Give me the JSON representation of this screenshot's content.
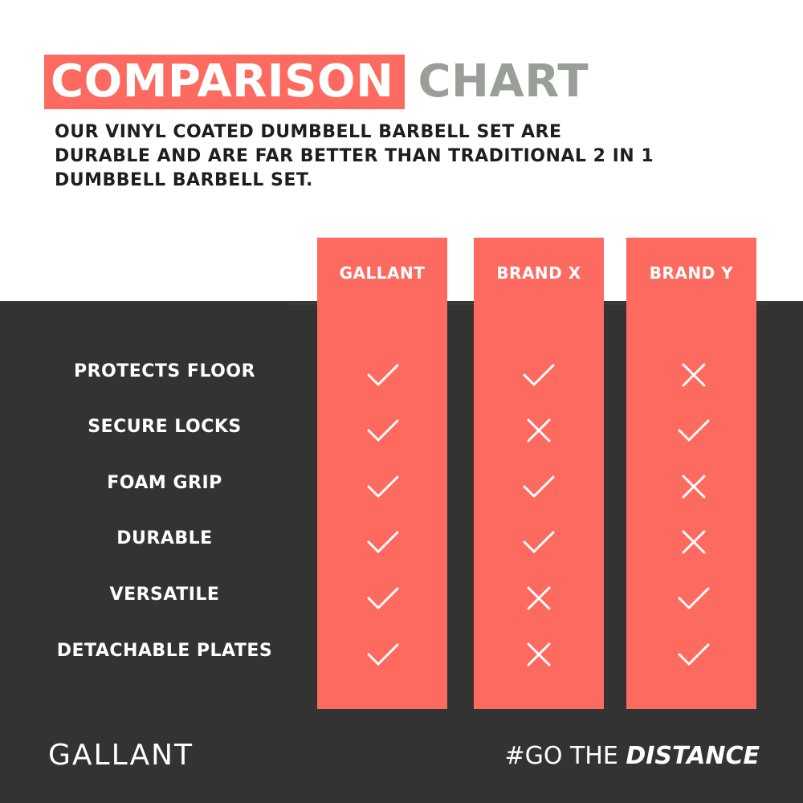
{
  "header": {
    "title_highlight": "COMPARISON",
    "title_rest": "CHART",
    "subtitle_lines": [
      "OUR VINYL COATED DUMBBELL BARBELL SET ARE",
      "DURABLE AND ARE FAR BETTER THAN TRADITIONAL 2 IN 1",
      "DUMBBELL BARBELL SET."
    ]
  },
  "chart_data": {
    "type": "table",
    "columns": [
      "GALLANT",
      "BRAND X",
      "BRAND Y"
    ],
    "rows": [
      {
        "feature": "PROTECTS FLOOR",
        "values": [
          "check",
          "check",
          "cross"
        ]
      },
      {
        "feature": "SECURE LOCKS",
        "values": [
          "check",
          "cross",
          "check"
        ]
      },
      {
        "feature": "FOAM GRIP",
        "values": [
          "check",
          "check",
          "cross"
        ]
      },
      {
        "feature": "DURABLE",
        "values": [
          "check",
          "check",
          "cross"
        ]
      },
      {
        "feature": "VERSATILE",
        "values": [
          "check",
          "cross",
          "check"
        ]
      },
      {
        "feature": "DETACHABLE PLATES",
        "values": [
          "check",
          "cross",
          "check"
        ]
      }
    ]
  },
  "footer": {
    "logo": "GALLANT",
    "hashtag_plain": "#GO THE",
    "hashtag_italic": "DISTANCE"
  },
  "colors": {
    "accent": "#fd6a60",
    "dark_bg": "#333333",
    "title_grey": "#9a9e99",
    "text_dark": "#1e1e1e"
  },
  "icons": {
    "check": "check-icon",
    "cross": "cross-icon"
  }
}
